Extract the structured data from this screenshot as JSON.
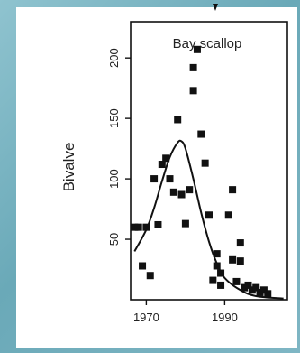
{
  "chart_data": {
    "type": "scatter",
    "title": "Bay scallop",
    "xlabel": "",
    "ylabel": "Bivalve",
    "xlim": [
      1966,
      2006
    ],
    "ylim": [
      0,
      230
    ],
    "x_ticks": [
      1970,
      1990
    ],
    "y_ticks": [
      50,
      100,
      150,
      200
    ],
    "grid": false,
    "series": [
      {
        "type": "scatter",
        "points": [
          {
            "x": 1967,
            "y": 60
          },
          {
            "x": 1968,
            "y": 60
          },
          {
            "x": 1969,
            "y": 28
          },
          {
            "x": 1970,
            "y": 60
          },
          {
            "x": 1971,
            "y": 20
          },
          {
            "x": 1972,
            "y": 100
          },
          {
            "x": 1973,
            "y": 62
          },
          {
            "x": 1974,
            "y": 112
          },
          {
            "x": 1975,
            "y": 117
          },
          {
            "x": 1976,
            "y": 100
          },
          {
            "x": 1977,
            "y": 89
          },
          {
            "x": 1978,
            "y": 149
          },
          {
            "x": 1979,
            "y": 87
          },
          {
            "x": 1980,
            "y": 63
          },
          {
            "x": 1981,
            "y": 91
          },
          {
            "x": 1982,
            "y": 192
          },
          {
            "x": 1982,
            "y": 173
          },
          {
            "x": 1983,
            "y": 207
          },
          {
            "x": 1984,
            "y": 137
          },
          {
            "x": 1985,
            "y": 113
          },
          {
            "x": 1986,
            "y": 70
          },
          {
            "x": 1987,
            "y": 16
          },
          {
            "x": 1988,
            "y": 38
          },
          {
            "x": 1988,
            "y": 28
          },
          {
            "x": 1989,
            "y": 12
          },
          {
            "x": 1989,
            "y": 22
          },
          {
            "x": 1991,
            "y": 70
          },
          {
            "x": 1992,
            "y": 91
          },
          {
            "x": 1992,
            "y": 33
          },
          {
            "x": 1993,
            "y": 15
          },
          {
            "x": 1994,
            "y": 32
          },
          {
            "x": 1994,
            "y": 47
          },
          {
            "x": 1995,
            "y": 10
          },
          {
            "x": 1996,
            "y": 12
          },
          {
            "x": 1997,
            "y": 8
          },
          {
            "x": 1998,
            "y": 10
          },
          {
            "x": 1999,
            "y": 6
          },
          {
            "x": 2000,
            "y": 8
          },
          {
            "x": 2001,
            "y": 5
          }
        ]
      },
      {
        "type": "line",
        "points": [
          {
            "x": 1967,
            "y": 40
          },
          {
            "x": 1970,
            "y": 58
          },
          {
            "x": 1972,
            "y": 76
          },
          {
            "x": 1974,
            "y": 98
          },
          {
            "x": 1976,
            "y": 118
          },
          {
            "x": 1978,
            "y": 130
          },
          {
            "x": 1979,
            "y": 131
          },
          {
            "x": 1980,
            "y": 125
          },
          {
            "x": 1982,
            "y": 100
          },
          {
            "x": 1984,
            "y": 72
          },
          {
            "x": 1986,
            "y": 48
          },
          {
            "x": 1988,
            "y": 30
          },
          {
            "x": 1990,
            "y": 18
          },
          {
            "x": 1994,
            "y": 8
          },
          {
            "x": 1998,
            "y": 3
          },
          {
            "x": 2005,
            "y": 1
          }
        ]
      }
    ]
  }
}
